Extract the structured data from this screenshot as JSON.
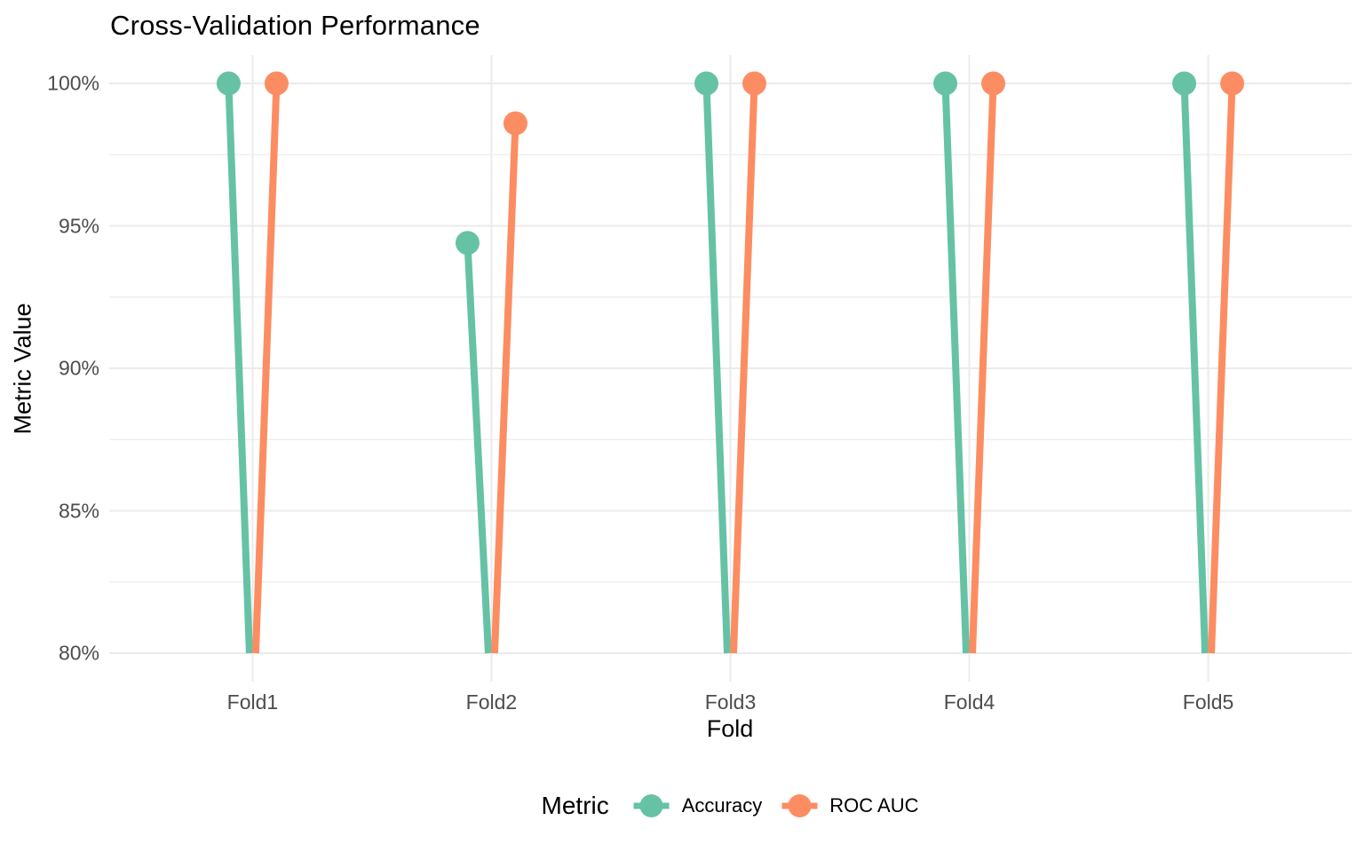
{
  "chart_data": {
    "type": "lollipop",
    "title": "Cross-Validation Performance",
    "xlabel": "Fold",
    "ylabel": "Metric Value",
    "categories": [
      "Fold1",
      "Fold2",
      "Fold3",
      "Fold4",
      "Fold5"
    ],
    "series": [
      {
        "name": "Accuracy",
        "color": "#66C2A5",
        "values": [
          100,
          94.4,
          100,
          100,
          100
        ]
      },
      {
        "name": "ROC AUC",
        "color": "#FC8D62",
        "values": [
          100,
          98.6,
          100,
          100,
          100
        ]
      }
    ],
    "value_unit": "%",
    "ylim": [
      80,
      100
    ],
    "baseline": 80,
    "yticks": [
      100,
      95,
      90,
      85,
      80
    ],
    "ytick_labels": [
      "100%",
      "95%",
      "90%",
      "85%",
      "80%"
    ],
    "minor_yticks": [
      97.5,
      92.5,
      87.5,
      82.5
    ],
    "legend": {
      "title": "Metric",
      "position": "bottom"
    },
    "grid": {
      "horizontal": "major+minor",
      "vertical": "major-only",
      "color": "#EBEBEB"
    },
    "background": "#FFFFFF"
  }
}
